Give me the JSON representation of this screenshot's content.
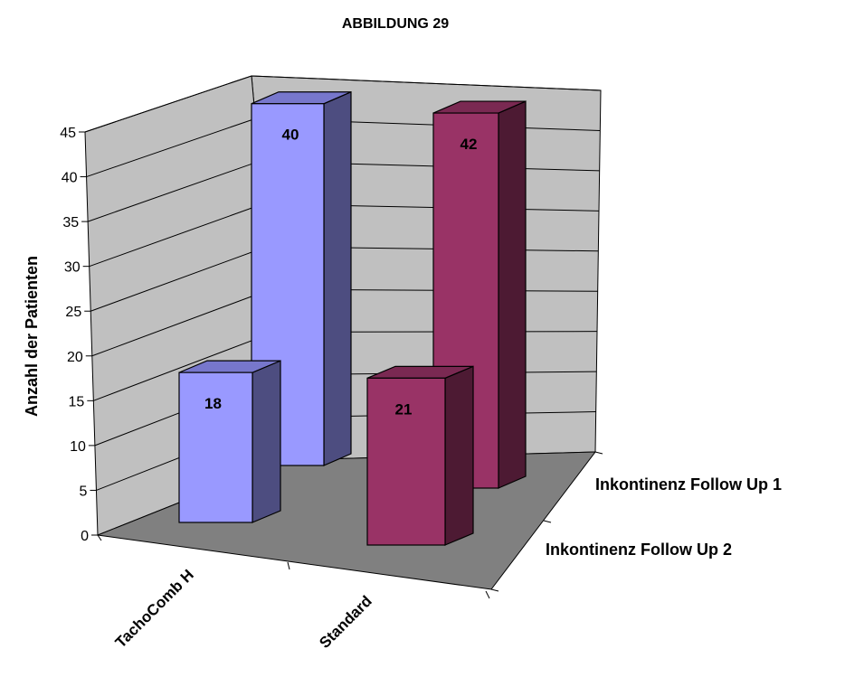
{
  "chart_data": {
    "type": "bar",
    "title": "ABBILDUNG 29",
    "ylabel": "Anzahl der Patienten",
    "xlabel": "",
    "ylim": [
      0,
      45
    ],
    "yticks": [
      "0",
      "5",
      "10",
      "15",
      "20",
      "25",
      "30",
      "35",
      "40",
      "45"
    ],
    "categories": [
      "TachoComb H",
      "Standard"
    ],
    "depth_labels": [
      "Inkontinenz Follow Up 1",
      "Inkontinenz Follow Up 2"
    ],
    "series": [
      {
        "name": "Inkontinenz Follow Up 1",
        "values": [
          40,
          42
        ]
      },
      {
        "name": "Inkontinenz Follow Up 2",
        "values": [
          18,
          21
        ]
      }
    ],
    "grid": true,
    "colors": {
      "TachoComb H": {
        "front": "#9999ff",
        "side": "#4d4d80",
        "top": "#7777cc"
      },
      "Standard": {
        "front": "#993366",
        "side": "#4d1a33",
        "top": "#7a2952"
      },
      "floor": "#808080",
      "walls": "#c0c0c0"
    }
  }
}
